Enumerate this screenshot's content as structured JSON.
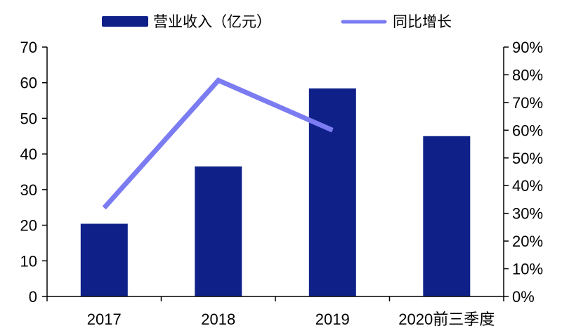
{
  "chart_data": {
    "type": "bar",
    "title": "",
    "xlabel": "",
    "ylabel": "",
    "categories": [
      "2017",
      "2018",
      "2019",
      "2020前三季度"
    ],
    "series": [
      {
        "name": "营业收入（亿元）",
        "type": "bar",
        "axis": "left",
        "color": "#0f2189",
        "values": [
          20.4,
          36.5,
          58.4,
          45.0
        ]
      },
      {
        "name": "同比增长",
        "type": "line",
        "axis": "right",
        "color": "#7b7bf2",
        "values": [
          0.32,
          0.78,
          0.6,
          null
        ]
      }
    ],
    "y_left": {
      "min": 0,
      "max": 70,
      "step": 10,
      "ticks": [
        "0",
        "10",
        "20",
        "30",
        "40",
        "50",
        "60",
        "70"
      ]
    },
    "y_right": {
      "min": 0,
      "max": 0.9,
      "step": 0.1,
      "ticks": [
        "0%",
        "10%",
        "20%",
        "30%",
        "40%",
        "50%",
        "60%",
        "70%",
        "80%",
        "90%"
      ]
    },
    "grid": false,
    "legend": {
      "position": "top-center",
      "entries": [
        "营业收入（亿元）",
        "同比增长"
      ]
    },
    "colors": {
      "axis": "#000000",
      "bar": "#0f2189",
      "line": "#7b7bf2"
    }
  }
}
